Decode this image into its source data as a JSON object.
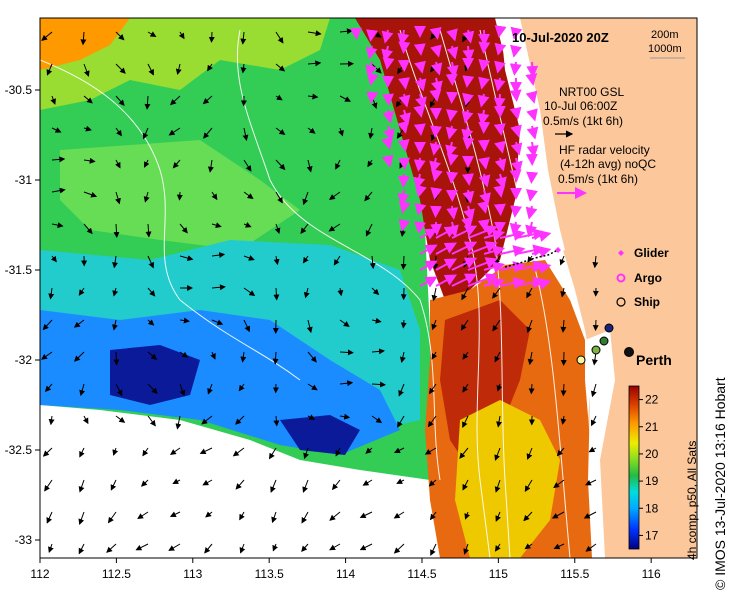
{
  "map": {
    "title": "10-Jul-2020 20Z",
    "credit": "© IMOS 13-Jul-2020 13:16 Hobart",
    "colors": {
      "land": "#fcc89b",
      "nodata": "#ffffff",
      "frame": "#000000",
      "radar_arrow": "#ff33ff",
      "current_arrow": "#000000",
      "contour": "#ffffff"
    },
    "x_ticks": [
      "112",
      "112.5",
      "113",
      "113.5",
      "114",
      "114.5",
      "115",
      "115.5",
      "116"
    ],
    "y_ticks": [
      "-30.5",
      "-31",
      "-31.5",
      "-32",
      "-32.5",
      "-33"
    ],
    "x_range": [
      112,
      116.3
    ],
    "y_range": [
      -33.1,
      -30.1
    ],
    "isobaths": {
      "line1": "200m",
      "line2": "1000m"
    }
  },
  "legend": {
    "gsl_line1": "NRT00 GSL",
    "gsl_line2": "10-Jul 06:00Z",
    "gsl_line3": "0.5m/s (1kt 6h)",
    "hf_line1": "HF radar velocity",
    "hf_line2": "(4-12h avg) noQC",
    "hf_line3": "0.5m/s (1kt 6h)",
    "glider": "Glider",
    "argo": "Argo",
    "ship": "Ship",
    "place": "Perth"
  },
  "colorbar": {
    "label": "4h comp, p50, All Sats",
    "ticks": [
      "17",
      "18",
      "19",
      "20",
      "21",
      "22"
    ],
    "range": [
      16.5,
      22.5
    ],
    "stops": [
      "#000080",
      "#0033ff",
      "#00aaff",
      "#00dddd",
      "#22bb44",
      "#88dd22",
      "#eeee00",
      "#ff9900",
      "#dd4400",
      "#990000"
    ]
  }
}
